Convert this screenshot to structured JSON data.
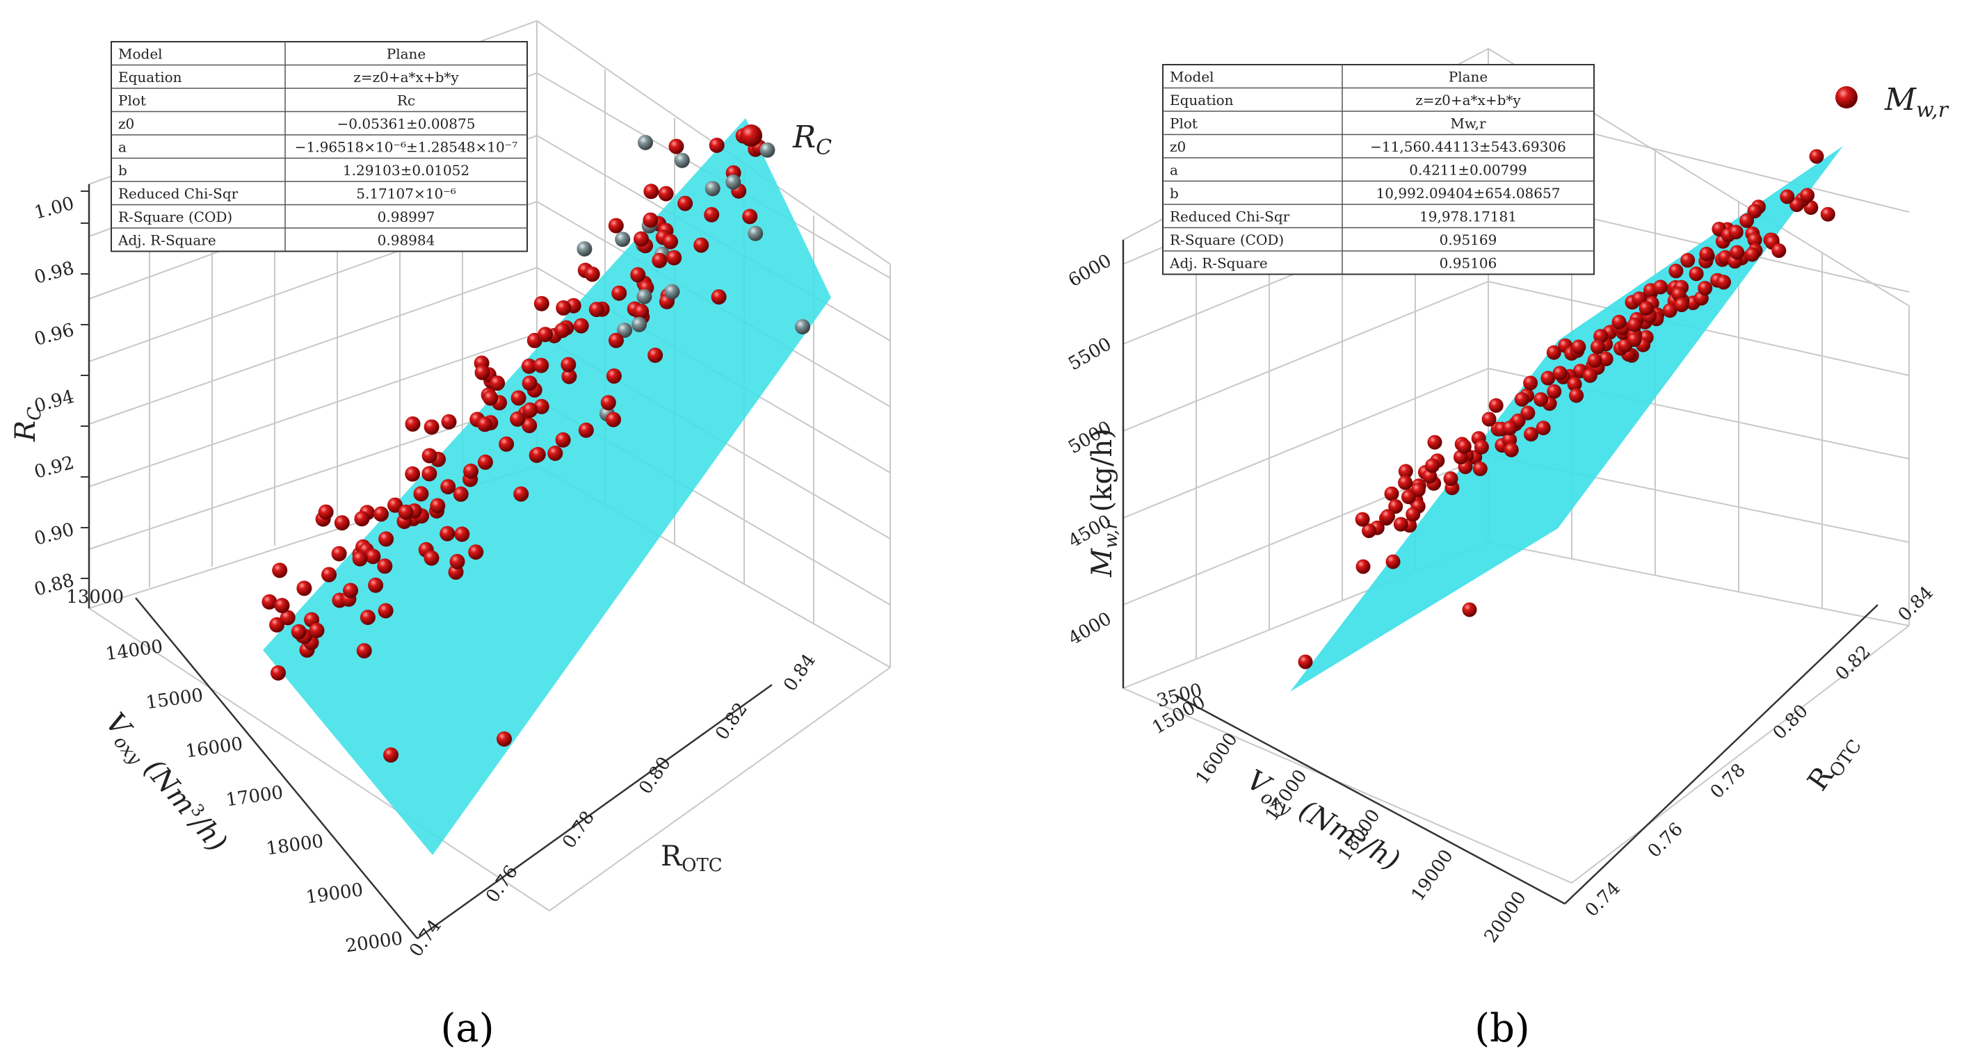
{
  "chart_data": [
    {
      "type": "scatter3d",
      "panel_label": "a",
      "legend": {
        "label": "R",
        "subscript": "C",
        "position": "top-right"
      },
      "axes": {
        "z": {
          "label": "R",
          "label_sub": "C",
          "ticks": [
            "0.88",
            "0.90",
            "0.92",
            "0.94",
            "0.96",
            "0.98",
            "1.00"
          ],
          "range": [
            0.88,
            1.0
          ]
        },
        "y": {
          "label": "V",
          "label_sub": "oxy",
          "label_rest": " (Nm",
          "label_sup": "3",
          "label_end": "/h)",
          "ticks": [
            "13000",
            "14000",
            "15000",
            "16000",
            "17000",
            "18000",
            "19000",
            "20000"
          ],
          "range": [
            13000,
            20000
          ]
        },
        "x": {
          "label": "R",
          "label_sub": "OTC",
          "ticks": [
            "0.74",
            "0.76",
            "0.78",
            "0.80",
            "0.82",
            "0.84"
          ],
          "range": [
            0.74,
            0.84
          ]
        }
      },
      "fit_table": {
        "rows": [
          {
            "key": "Model",
            "val": "Plane"
          },
          {
            "key": "Equation",
            "val": "z=z0+a*x+b*y"
          },
          {
            "key": "Plot",
            "val": "Rc"
          },
          {
            "key": "z0",
            "val": "−0.05361±0.00875"
          },
          {
            "key": "a",
            "val": "−1.96518×10⁻⁶±1.28548×10⁻⁷"
          },
          {
            "key": "b",
            "val": "1.29103±0.01052"
          },
          {
            "key": "Reduced Chi-Sqr",
            "val": "5.17107×10⁻⁶"
          },
          {
            "key": "R-Square (COD)",
            "val": "0.98997"
          },
          {
            "key": "Adj. R-Square",
            "val": "0.98984"
          }
        ]
      },
      "fit": {
        "z0": -0.05361,
        "a": -1.96518e-06,
        "b": 1.29103
      },
      "points_note": "Experimental data points (red spheres above plane, gray below plane)",
      "point_count": 160
    },
    {
      "type": "scatter3d",
      "panel_label": "b",
      "legend": {
        "label": "M",
        "subscript": "w,r",
        "position": "top-right"
      },
      "axes": {
        "z": {
          "label": "M",
          "label_sub": "w,r",
          "label_rest": " (kg/h)",
          "ticks": [
            "3500",
            "4000",
            "4500",
            "5000",
            "5500",
            "6000"
          ],
          "range": [
            3500,
            6000
          ]
        },
        "y": {
          "label": "V",
          "label_sub": "oxy",
          "label_rest": " (Nm",
          "label_sup": "3",
          "label_end": "/h)",
          "ticks": [
            "15000",
            "16000",
            "17000",
            "18000",
            "19000",
            "20000"
          ],
          "range": [
            15000,
            20000
          ]
        },
        "x": {
          "label": "R",
          "label_sub": "OTC",
          "ticks": [
            "0.74",
            "0.76",
            "0.78",
            "0.80",
            "0.82",
            "0.84"
          ],
          "range": [
            0.74,
            0.84
          ]
        }
      },
      "fit_table": {
        "rows": [
          {
            "key": "Model",
            "val": "Plane"
          },
          {
            "key": "Equation",
            "val": "z=z0+a*x+b*y"
          },
          {
            "key": "Plot",
            "val": "Mw,r"
          },
          {
            "key": "z0",
            "val": "−11,560.44113±543.69306"
          },
          {
            "key": "a",
            "val": "0.4211±0.00799"
          },
          {
            "key": "b",
            "val": "10,992.09404±654.08657"
          },
          {
            "key": "Reduced Chi-Sqr",
            "val": "19,978.17181"
          },
          {
            "key": "R-Square (COD)",
            "val": "0.95169"
          },
          {
            "key": "Adj. R-Square",
            "val": "0.95106"
          }
        ]
      },
      "fit": {
        "z0": -11560.44113,
        "a": 0.4211,
        "b": 10992.09404
      },
      "points_note": "Experimental data points (red spheres)",
      "point_count": 150
    }
  ],
  "captions": {
    "a": "(a)",
    "b": "(b)"
  },
  "colors": {
    "plane": "#3fe0e8",
    "point_red": "#cc1111",
    "point_gray": "#7a8a90",
    "grid": "#c8c8c8",
    "axis": "#333333"
  }
}
